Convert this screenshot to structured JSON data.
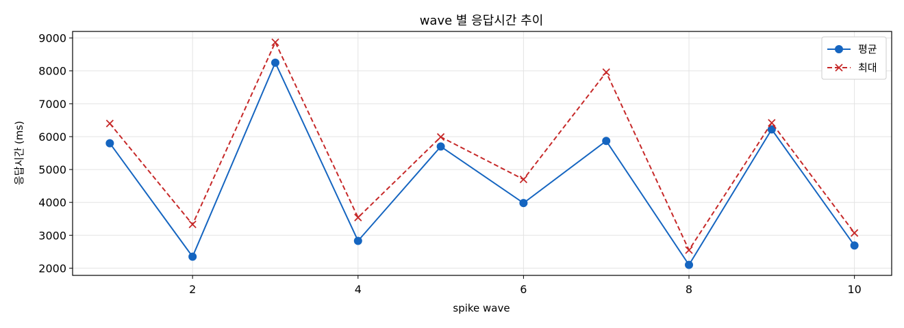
{
  "chart_data": {
    "type": "line",
    "title": "wave 별 응답시간 추이",
    "xlabel": "spike wave",
    "ylabel": "응답시간 (ms)",
    "x": [
      1,
      2,
      3,
      4,
      5,
      6,
      7,
      8,
      9,
      10
    ],
    "xticks": [
      2,
      4,
      6,
      8,
      10
    ],
    "yticks": [
      2000,
      3000,
      4000,
      5000,
      6000,
      7000,
      8000,
      9000
    ],
    "xlim": [
      0.55,
      10.45
    ],
    "ylim": [
      1780,
      9200
    ],
    "grid": true,
    "legend_position": "top-right",
    "series": [
      {
        "name": "평균",
        "values": [
          5800,
          2350,
          8250,
          2830,
          5700,
          3980,
          5870,
          2100,
          6220,
          2690
        ],
        "color": "#1565c0",
        "marker": "circle",
        "line_style": "solid"
      },
      {
        "name": "최대",
        "values": [
          6400,
          3330,
          8870,
          3540,
          5990,
          4700,
          7960,
          2550,
          6420,
          3070
        ],
        "color": "#c62828",
        "marker": "x",
        "line_style": "dashed"
      }
    ]
  }
}
